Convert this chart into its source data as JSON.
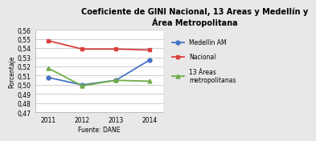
{
  "title": "Coeficiente de GINI Nacional, 13 Areas y Medellín y\nÁrea Metropolitana",
  "xlabel": "Fuente: DANE",
  "ylabel": "Porcentaje",
  "years": [
    2011,
    2012,
    2013,
    2014
  ],
  "series": [
    {
      "label": "Medellín AM",
      "values": [
        0.508,
        0.5,
        0.505,
        0.527
      ],
      "color": "#4472C4",
      "marker": "o"
    },
    {
      "label": "Nacional",
      "values": [
        0.548,
        0.539,
        0.539,
        0.538
      ],
      "color": "#D94040",
      "marker": "s"
    },
    {
      "label": "13 Áreas\nmetropolitanas",
      "values": [
        0.518,
        0.499,
        0.505,
        0.504
      ],
      "color": "#70AD47",
      "marker": "^"
    }
  ],
  "ylim": [
    0.47,
    0.56
  ],
  "yticks": [
    0.47,
    0.48,
    0.49,
    0.5,
    0.51,
    0.52,
    0.53,
    0.54,
    0.55,
    0.56
  ],
  "bg_color": "#E8E8E8",
  "plot_bg_color": "#FFFFFF",
  "grid_color": "#BBBBBB",
  "title_fontsize": 7.0,
  "label_fontsize": 5.5,
  "tick_fontsize": 5.5,
  "legend_fontsize": 5.5,
  "line_width": 1.3,
  "marker_size": 3.5
}
